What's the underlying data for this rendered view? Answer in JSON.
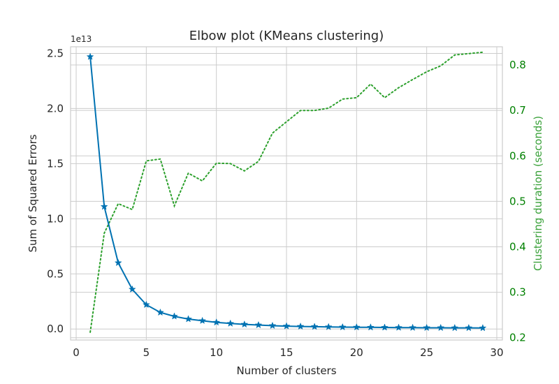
{
  "chart_data": {
    "type": "line",
    "title": "Elbow plot (KMeans clustering)",
    "xlabel": "Number of clusters",
    "ylabel": "Sum of Squared Errors",
    "y2label": "Clustering duration (seconds)",
    "y_offset_text": "1e13",
    "xlim": [
      -0.4,
      30.4
    ],
    "ylim": [
      -0.1,
      2.56
    ],
    "y2lim": [
      0.195,
      0.84
    ],
    "x_ticks": [
      0,
      5,
      10,
      15,
      20,
      25,
      30
    ],
    "y_ticks": [
      0.0,
      0.5,
      1.0,
      1.5,
      2.0,
      2.5
    ],
    "y_tick_labels": [
      "0.0",
      "0.5",
      "1.0",
      "1.5",
      "2.0",
      "2.5"
    ],
    "y2_ticks": [
      0.2,
      0.3,
      0.4,
      0.5,
      0.6,
      0.7,
      0.8
    ],
    "y2_tick_labels": [
      "0.2",
      "0.3",
      "0.4",
      "0.5",
      "0.6",
      "0.7",
      "0.8"
    ],
    "grid": true,
    "colors": {
      "sse": "#0072b2",
      "duration": "#2ca02c",
      "right_axis": "#008000",
      "grid": "#cccccc"
    },
    "series": [
      {
        "axis": "left",
        "marker": "star",
        "x": [
          1,
          2,
          3,
          4,
          5,
          6,
          7,
          8,
          9,
          10,
          11,
          12,
          13,
          14,
          15,
          16,
          17,
          18,
          19,
          20,
          21,
          22,
          23,
          24,
          25,
          26,
          27,
          28,
          29
        ],
        "values": [
          2.47,
          1.11,
          0.6,
          0.36,
          0.22,
          0.15,
          0.115,
          0.09,
          0.075,
          0.06,
          0.05,
          0.042,
          0.036,
          0.03,
          0.026,
          0.023,
          0.021,
          0.019,
          0.017,
          0.016,
          0.015,
          0.014,
          0.013,
          0.012,
          0.011,
          0.011,
          0.01,
          0.01,
          0.009
        ]
      },
      {
        "axis": "right",
        "style": "dotted",
        "x": [
          1,
          2,
          3,
          4,
          5,
          6,
          7,
          8,
          9,
          10,
          11,
          12,
          13,
          14,
          15,
          16,
          17,
          18,
          19,
          20,
          21,
          22,
          23,
          24,
          25,
          26,
          27,
          28,
          29
        ],
        "values": [
          0.212,
          0.43,
          0.495,
          0.482,
          0.589,
          0.593,
          0.49,
          0.562,
          0.545,
          0.584,
          0.583,
          0.567,
          0.588,
          0.65,
          0.675,
          0.7,
          0.7,
          0.705,
          0.725,
          0.728,
          0.758,
          0.728,
          0.75,
          0.768,
          0.785,
          0.798,
          0.822,
          0.825,
          0.828
        ]
      }
    ]
  }
}
